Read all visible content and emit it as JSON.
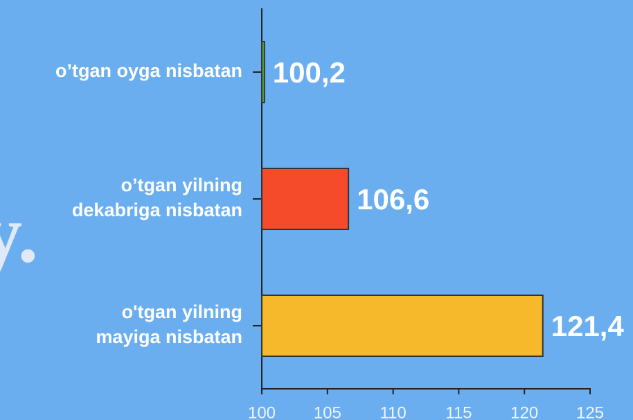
{
  "chart_data": {
    "type": "barh",
    "categories": [
      [
        "o’tgan oyga nisbatan"
      ],
      [
        "o’tgan yilning",
        "dekabriga nisbatan"
      ],
      [
        "o'tgan yilning",
        "mayiga nisbatan"
      ]
    ],
    "values": [
      100.2,
      106.6,
      121.4
    ],
    "value_labels": [
      "100,2",
      "106,6",
      "121,4"
    ],
    "colors": [
      "#5ab52c",
      "#f54b2b",
      "#f6b92c"
    ],
    "xlim": [
      100,
      125
    ],
    "xticks": [
      100,
      105,
      110,
      115,
      120,
      125
    ],
    "background_text": "y."
  }
}
